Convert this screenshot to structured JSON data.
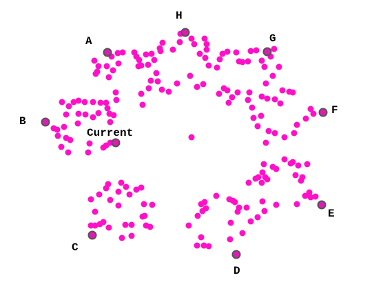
{
  "colors": {
    "background": "#ffffff",
    "dot_fill": "#ff10c8",
    "landmark_fill": "#e01ab4",
    "landmark_stroke": "#555555"
  },
  "landmarks": [
    {
      "id": "A",
      "label": "A"
    },
    {
      "id": "H",
      "label": "H"
    },
    {
      "id": "G",
      "label": "G"
    },
    {
      "id": "B",
      "label": "B"
    },
    {
      "id": "F",
      "label": "F"
    },
    {
      "id": "current",
      "label": "Current"
    },
    {
      "id": "C",
      "label": "C"
    },
    {
      "id": "D",
      "label": "D"
    },
    {
      "id": "E",
      "label": "E"
    }
  ]
}
